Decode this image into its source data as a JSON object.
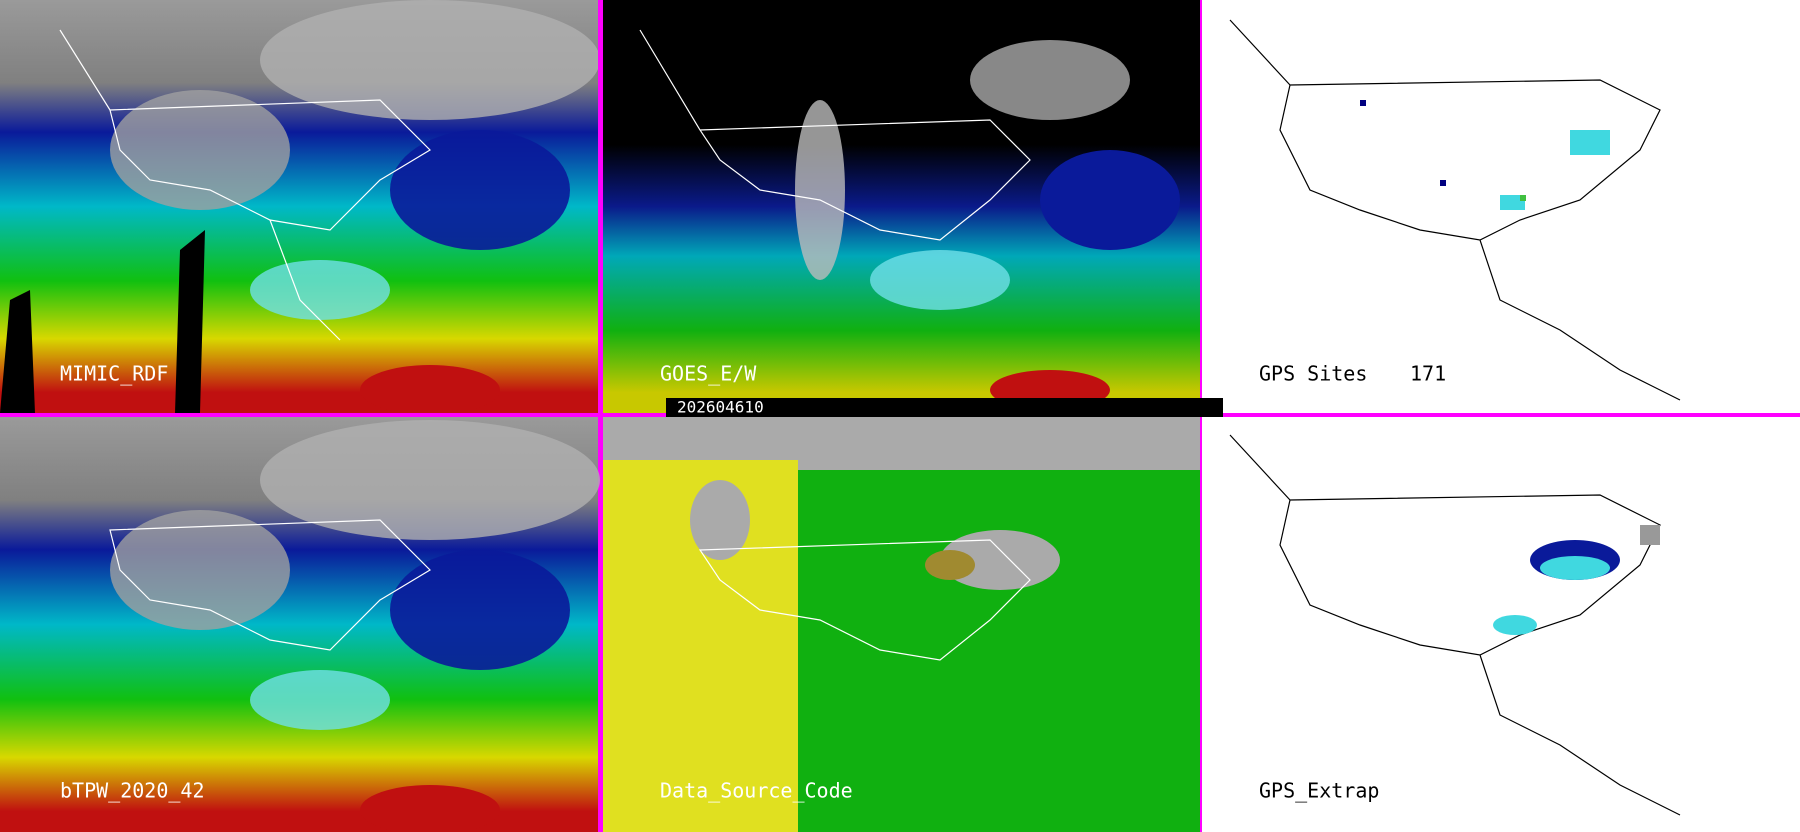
{
  "panels": [
    {
      "label": "MIMIC_RDF"
    },
    {
      "label": "GOES_E/W"
    },
    {
      "label": "GPS Sites",
      "count": "171"
    },
    {
      "label": "bTPW_2020_42"
    },
    {
      "label": "Data_Source_Code"
    },
    {
      "label": "GPS_Extrap"
    }
  ],
  "timestamp": "202604610"
}
